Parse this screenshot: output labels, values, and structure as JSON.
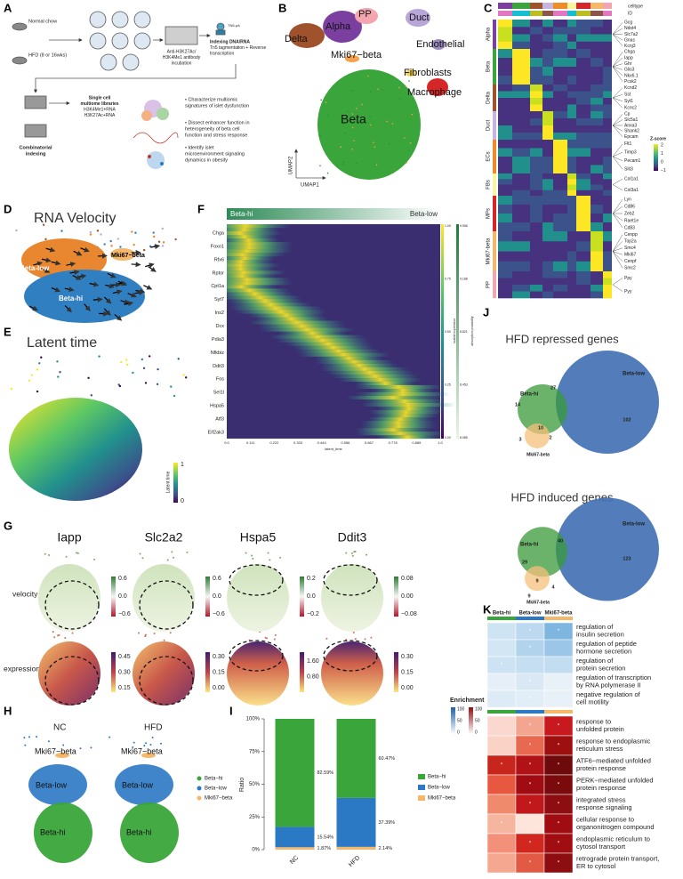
{
  "panel_labels": [
    "A",
    "B",
    "C",
    "D",
    "E",
    "F",
    "G",
    "H",
    "I",
    "J",
    "K"
  ],
  "A": {
    "normal_chow": "Normal chow",
    "hfd": "HFD (8 or 16wks)",
    "antibody": [
      "Anti-H3K27Ac/",
      "H3K4Me1 antibody",
      "incubation"
    ],
    "tn5": "TN5-pA",
    "indexing": [
      "Indexing DNA/RNA",
      "Tn5 tagmentation + Reverse",
      "transcription"
    ],
    "combinatorial": [
      "Combinatorial",
      "indexing"
    ],
    "libraries": [
      "Single cell",
      "multiome libraries",
      "H3K4Me1+RNA",
      "H3K27Ac+RNA"
    ],
    "aims": [
      [
        "• Characterize multiomic",
        "signatures of islet dysfunction"
      ],
      [
        "• Dissect enhancer function in",
        "heterogeneity of beta cell",
        "function and stress response"
      ],
      [
        "• Identify islet",
        "microenvironment signaling",
        "dynamics in obesity"
      ]
    ]
  },
  "B": {
    "clusters": [
      "Delta",
      "Alpha",
      "PP",
      "Duct",
      "Endothelial",
      "Mki67−beta",
      "Fibroblasts",
      "Macrophage",
      "Beta"
    ],
    "x_label": "UMAP1",
    "y_label": "UMAP2"
  },
  "C": {
    "annotations": [
      "celltype",
      "ID"
    ],
    "groups": [
      "Alpha",
      "Beta",
      "Delta",
      "Duct",
      "ECs",
      "FBs",
      "MPs",
      "Mki67-beta",
      "PP"
    ],
    "genes": [
      [
        "Gcg",
        "Ndst4",
        "Slc7a2",
        "Gnas",
        "Kcnj3"
      ],
      [
        "Chga",
        "Iapp",
        "Ghr",
        "Glis3",
        "Nkx6.1",
        "Pcsk2"
      ],
      [
        "Kcnd2",
        "Sst",
        "Syt1",
        "Kcnc2"
      ],
      [
        "Cp",
        "Slc5a1",
        "Anxa3",
        "Shank2",
        "Epcam"
      ],
      [
        "Flt1",
        "Timp3",
        "Pecam1",
        "Slit3"
      ],
      [
        "Col1a1",
        "Col3a1"
      ],
      [
        "Lyn",
        "Cd86",
        "Zeb2",
        "Raet1e",
        "Cd83"
      ],
      [
        "Cenpp",
        "Top2a",
        "Smc4",
        "Mki67",
        "Cenpf",
        "Smc2"
      ],
      [
        "Ppy",
        "Pyy"
      ]
    ],
    "legend_title": "Z-score",
    "legend_ticks": [
      "2",
      "1",
      "0",
      "−1"
    ]
  },
  "D": {
    "title": "RNA Velocity",
    "clusters": [
      "Mki67−beta",
      "Beta-low",
      "Beta-hi"
    ]
  },
  "E": {
    "title": "Latent time",
    "legend_title": "Latent time",
    "legend_ticks": [
      "1",
      "0"
    ]
  },
  "F": {
    "start": "Beta-hi",
    "end": "Beta-low",
    "genes": [
      "Chga",
      "Foxo1",
      "Rfx6",
      "Rptor",
      "Cpt1a",
      "Syt7",
      "Ins2",
      "Dcx",
      "Pdia3",
      "Nfkbiz",
      "Ddit3",
      "Fos",
      "Sel1l",
      "Hspa5",
      "Atf3",
      "Eif2ak3"
    ],
    "x_label": "latent_time",
    "x_ticks": [
      "0.0",
      "0.111",
      "0.222",
      "0.333",
      "0.444",
      "0.556",
      "0.667",
      "0.778",
      "0.889",
      "1.0"
    ],
    "scale1_label": "scaled expression",
    "scale1_ticks": [
      "1.00",
      "0.75",
      "0.50",
      "0.25",
      "0.00"
    ],
    "scale2_label": "absorption probability",
    "scale2_ticks": [
      "9.556",
      "9.188",
      "8.821",
      "8.453",
      "8.085"
    ]
  },
  "G": {
    "genes": [
      "Iapp",
      "Slc2a2",
      "Hspa5",
      "Ddit3"
    ],
    "rows": [
      "velocity",
      "expression"
    ],
    "velocity_ticks": [
      [
        "0.6",
        "0.0",
        "−0.6"
      ],
      [
        "0.6",
        "0.0",
        "−0.6"
      ],
      [
        "0.2",
        "0.0",
        "−0.2"
      ],
      [
        "0.08",
        "0.00",
        "−0.08"
      ]
    ],
    "expression_ticks": [
      [
        "0.45",
        "0.30",
        "0.15"
      ],
      [
        "0.30",
        "0.15",
        "0.00"
      ],
      [
        "1.60",
        "0.80"
      ],
      [
        "0.30",
        "0.15",
        "0.00"
      ]
    ]
  },
  "H": {
    "groups": [
      "NC",
      "HFD"
    ],
    "cluster_labels": [
      "Mki67−beta",
      "Beta-low",
      "Beta-hi"
    ],
    "legend": [
      "Beta−hi",
      "Beta−low",
      "Mki67−beta"
    ]
  },
  "chart_data": {
    "type": "bar",
    "stacked": true,
    "categories": [
      "NC",
      "HFD"
    ],
    "series": [
      {
        "name": "Beta−hi",
        "color": "#3aa53a",
        "values": [
          82.59,
          60.47
        ],
        "value_labels": [
          "82.59%",
          "60.47%"
        ]
      },
      {
        "name": "Beta−low",
        "color": "#2b78c4",
        "values": [
          15.54,
          37.39
        ],
        "value_labels": [
          "15.54%",
          "37.39%"
        ]
      },
      {
        "name": "Mki67−beta",
        "color": "#f5b76a",
        "values": [
          1.87,
          2.14
        ],
        "value_labels": [
          "1.87%",
          "2.14%"
        ]
      }
    ],
    "ylabel": "Ratio",
    "ylim": [
      0,
      100
    ],
    "yticks": [
      {
        "value": 0,
        "label": "0%"
      },
      {
        "value": 25,
        "label": "25%"
      },
      {
        "value": 50,
        "label": "50%"
      },
      {
        "value": 75,
        "label": "75%"
      },
      {
        "value": 100,
        "label": "100%"
      }
    ],
    "legend": "right"
  },
  "J": {
    "venns": [
      {
        "title": "HFD repressed genes",
        "labels": [
          "Beta-low",
          "Beta-hi",
          "Mki67-beta"
        ],
        "counts": [
          14,
          27,
          102,
          10,
          2,
          3
        ]
      },
      {
        "title": "HFD induced genes",
        "labels": [
          "Beta-low",
          "Beta-hi",
          "Mki67-beta"
        ],
        "counts": [
          29,
          40,
          123,
          9,
          4,
          9
        ]
      }
    ]
  },
  "K": {
    "columns": [
      "Beta-hi",
      "Beta-low",
      "Mki67-beta"
    ],
    "repressed_terms": [
      [
        "regulation of",
        "insulin secretion"
      ],
      [
        "regulation of peptide",
        "hormone secretion"
      ],
      [
        "regulation of",
        "protein secretion"
      ],
      [
        "regulation of transcription",
        "by RNA polymerase II"
      ],
      [
        "negative regulation of",
        "cell motility"
      ]
    ],
    "induced_terms": [
      [
        "response to",
        "unfolded protein"
      ],
      [
        "response to endoplasmic",
        "reticulum stress"
      ],
      [
        "ATF6−mediated unfolded",
        "protein response"
      ],
      [
        "PERK−mediated unfolded",
        "protein response"
      ],
      [
        "integrated stress",
        "response signaling"
      ],
      [
        "cellular response to",
        "organonitrogen compound"
      ],
      [
        "endoplasmic reticulum to",
        "cytosol transport"
      ],
      [
        "retrograde protein transport,",
        "ER to cytosol"
      ]
    ],
    "legend_title": "Enrichment",
    "blue_ticks": [
      "100",
      "50",
      "0"
    ],
    "red_ticks": [
      "100",
      "50",
      "0"
    ],
    "significance_mark": "*"
  }
}
